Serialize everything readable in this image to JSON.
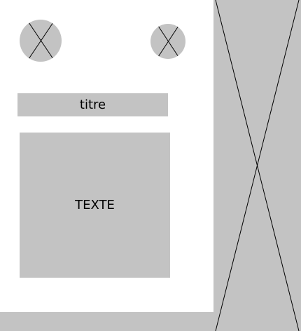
{
  "colors": {
    "placeholder_fill": "#c3c3c3",
    "line": "#000000",
    "background": "#ffffff"
  },
  "title": {
    "label": "titre"
  },
  "text_block": {
    "label": "TEXTE"
  },
  "placeholders": {
    "image_icon": "cross-placeholder-icon"
  }
}
